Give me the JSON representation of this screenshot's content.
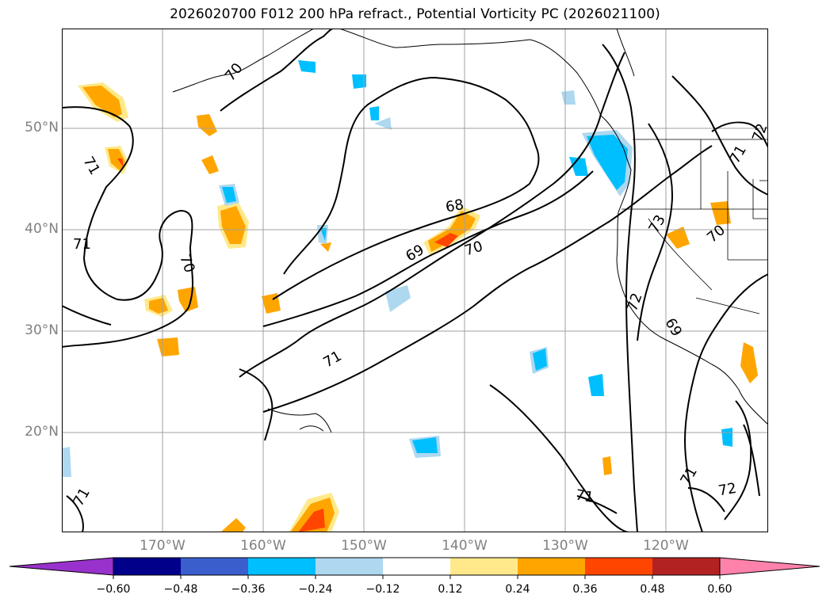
{
  "title": "2026020700 F012 200 hPa refract., Potential Vorticity PC (2026021100)",
  "lat_labels": [
    "50°N",
    "40°N",
    "30°N",
    "20°N"
  ],
  "lon_labels": [
    "170°W",
    "160°W",
    "150°W",
    "140°W",
    "130°W",
    "120°W"
  ],
  "contour_labels": [
    "70",
    "71",
    "71",
    "70",
    "68",
    "69",
    "70",
    "71",
    "71",
    "72",
    "73",
    "70",
    "72",
    "71",
    "69",
    "71",
    "72",
    "71"
  ],
  "colorbar": {
    "ticks": [
      "−0.60",
      "−0.48",
      "−0.36",
      "−0.24",
      "−0.12",
      "0.12",
      "0.24",
      "0.36",
      "0.48",
      "0.60"
    ],
    "colors": [
      "#9932cc",
      "#00008b",
      "#3a5fcd",
      "#00bfff",
      "#add8f0",
      "#ffffff",
      "#ffe98a",
      "#ffa500",
      "#ff4500",
      "#b22222",
      "#ff82ab"
    ]
  }
}
